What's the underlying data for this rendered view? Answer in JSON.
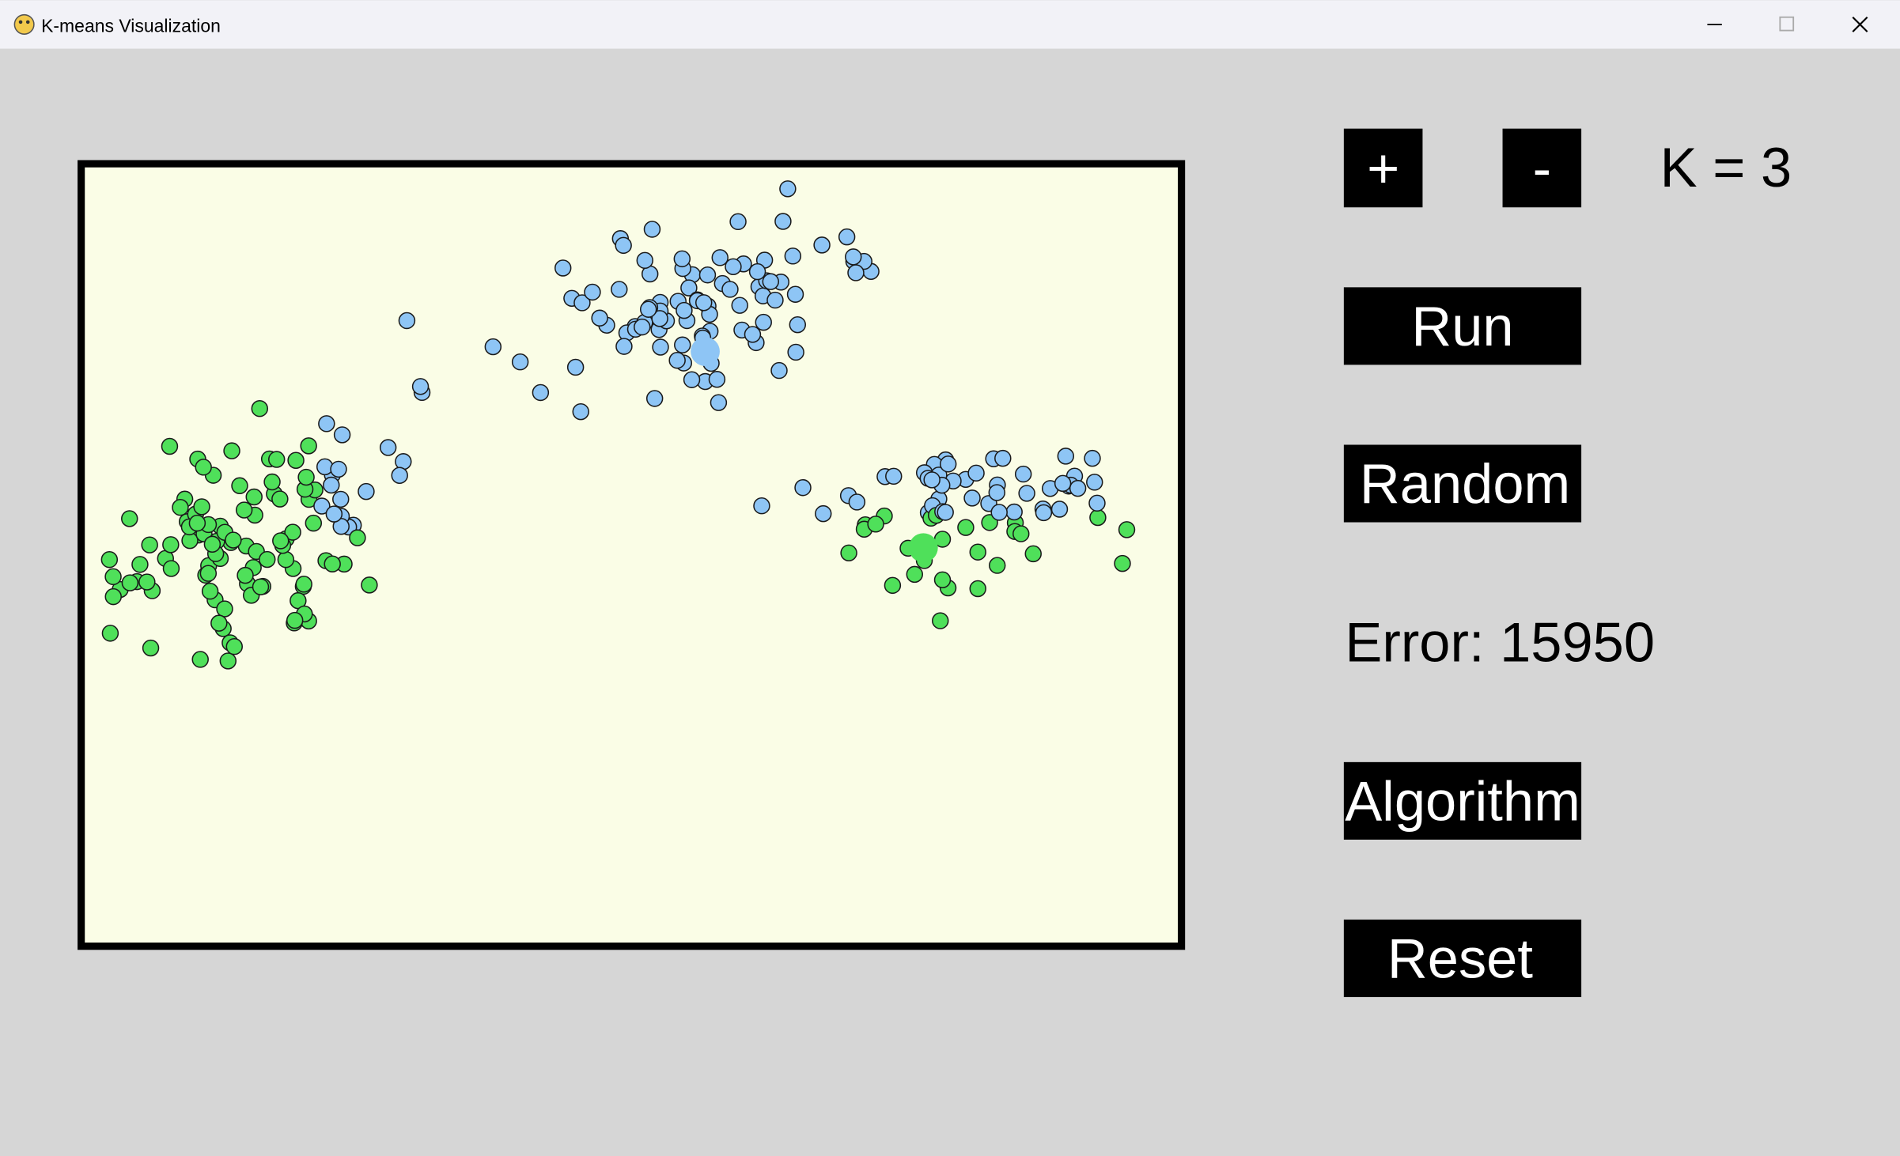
{
  "window": {
    "title": "K-means Visualization"
  },
  "controls": {
    "plus": "+",
    "minus": "-",
    "k_label": "K = 3",
    "run": "Run",
    "random": "Random",
    "error": "Error: 15950",
    "algorithm": "Algorithm",
    "reset": "Reset"
  }
}
